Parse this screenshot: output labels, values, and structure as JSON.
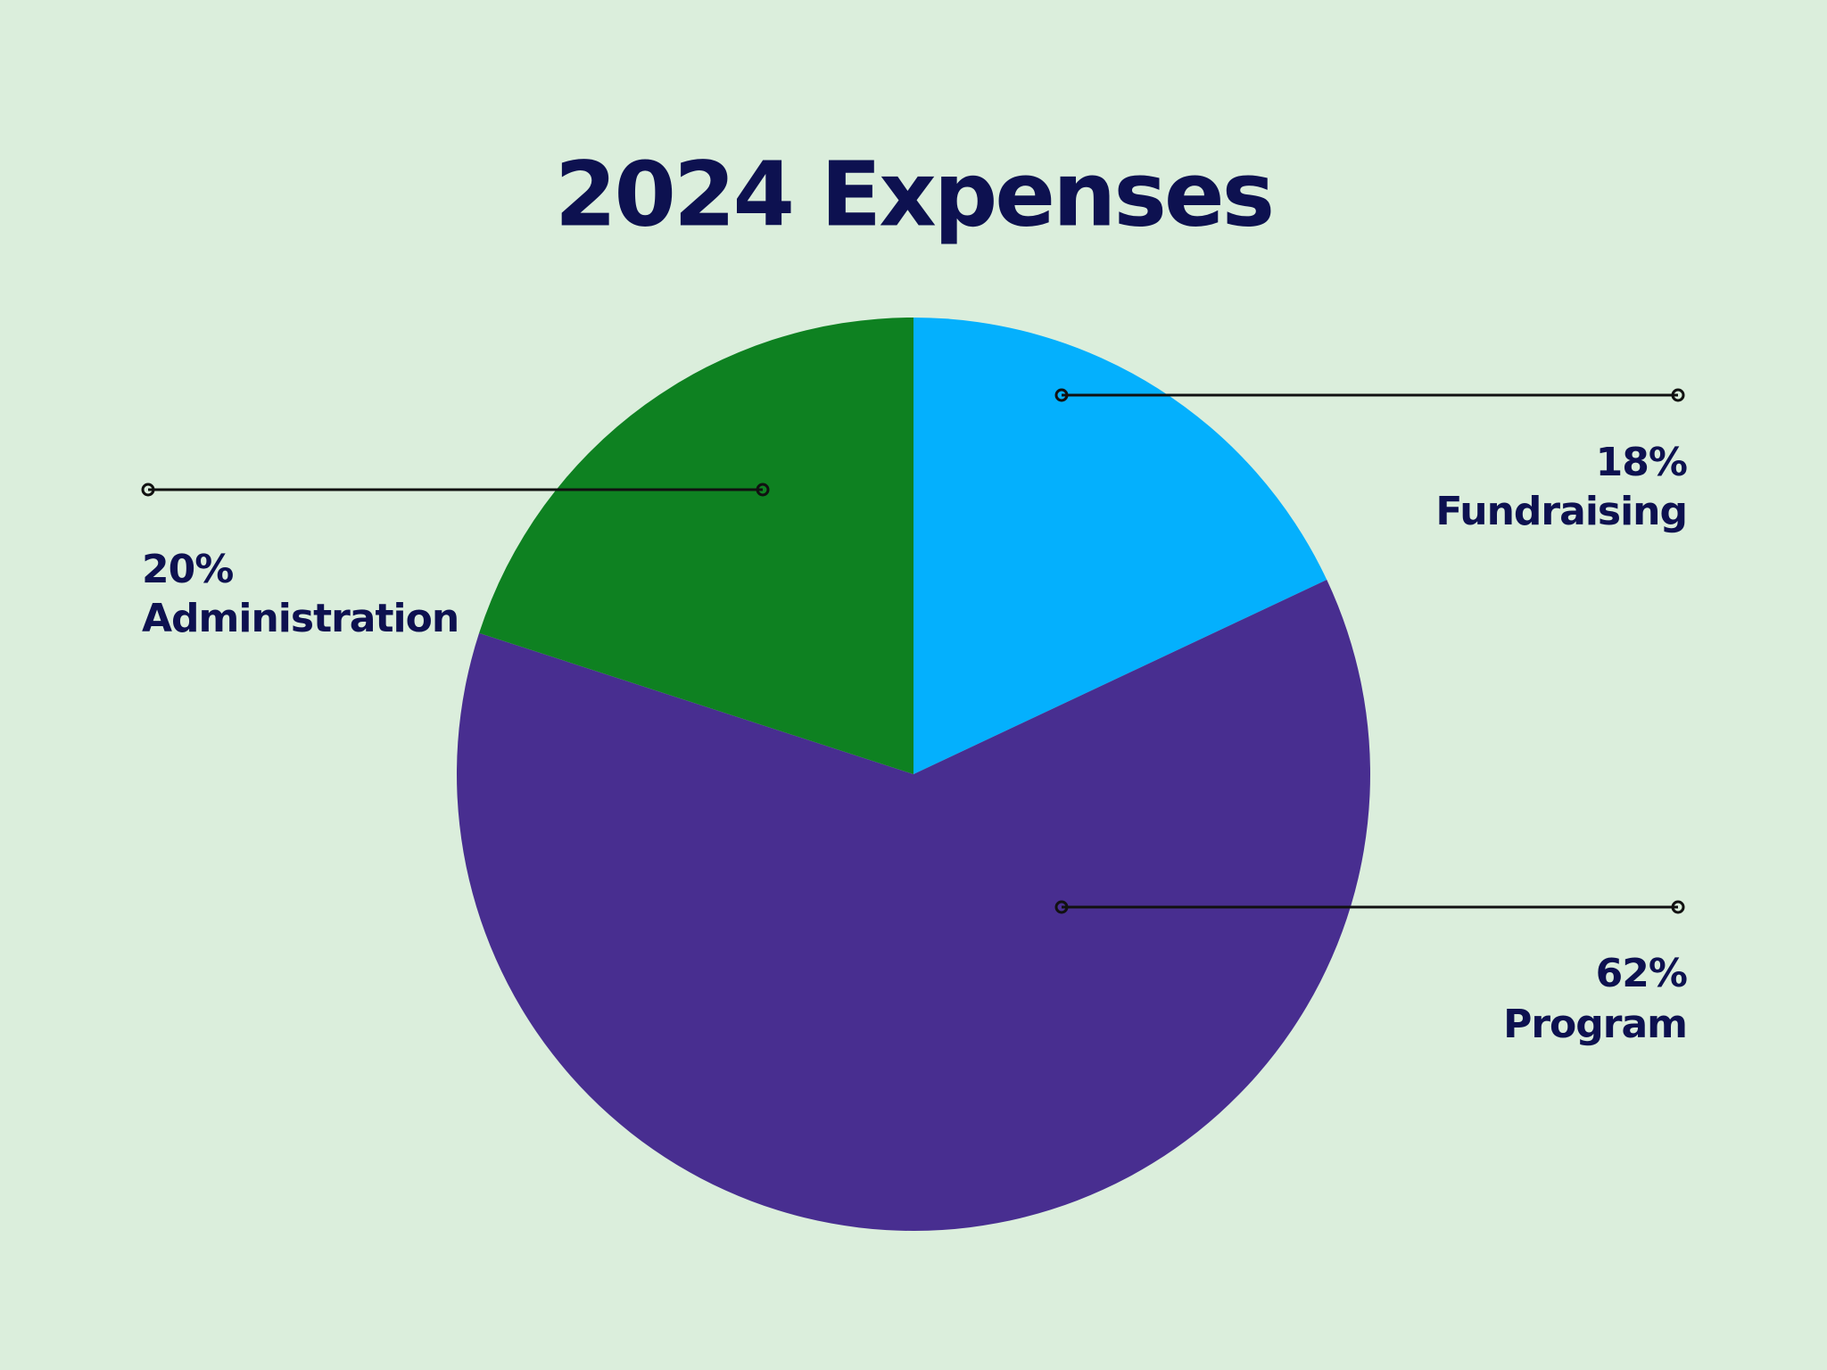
{
  "chart_data": {
    "type": "pie",
    "title": "2024 Expenses",
    "categories": [
      "Fundraising",
      "Program",
      "Administration"
    ],
    "values": [
      18,
      62,
      20
    ],
    "value_labels": [
      "18%",
      "62%",
      "20%"
    ],
    "colors": [
      "#04b0fd",
      "#482e90",
      "#0e8121"
    ]
  }
}
